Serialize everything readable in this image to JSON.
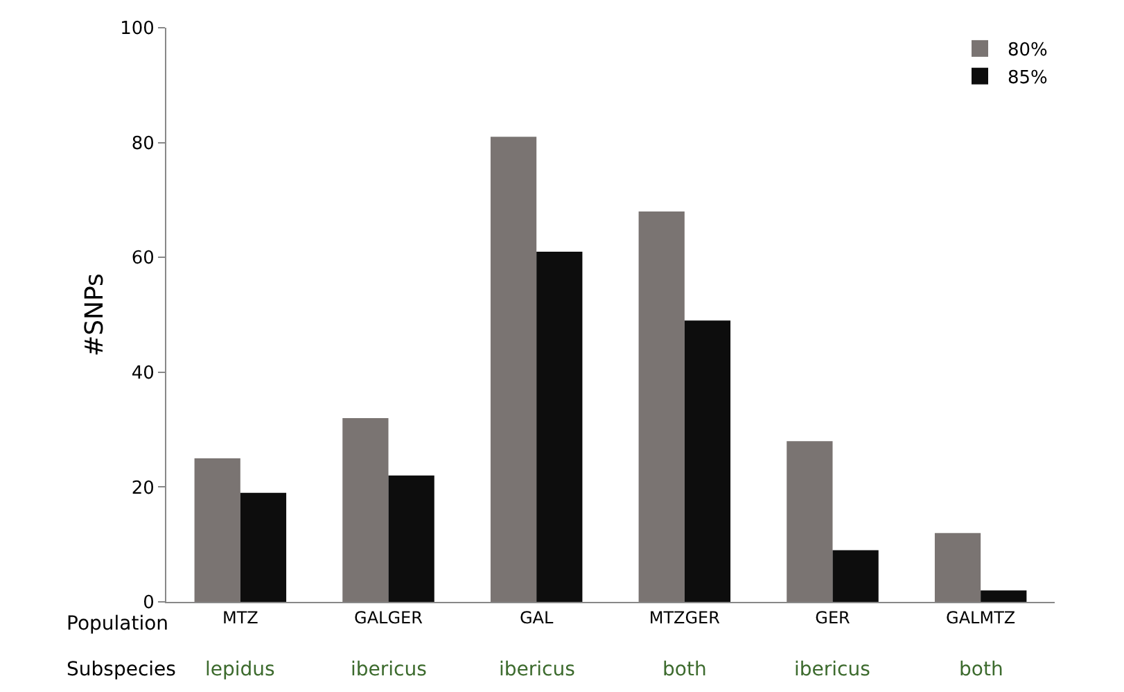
{
  "chart_data": {
    "type": "bar",
    "ylabel": "#SNPs",
    "categories": [
      "MTZ",
      "GALGER",
      "GAL",
      "MTZGER",
      "GER",
      "GALMTZ"
    ],
    "series": [
      {
        "name": "80%",
        "color": "#7a7472",
        "values": [
          25,
          32,
          81,
          68,
          28,
          12
        ]
      },
      {
        "name": "85%",
        "color": "#0d0d0d",
        "values": [
          19,
          22,
          61,
          49,
          9,
          2
        ]
      }
    ],
    "ylim": [
      0,
      100
    ],
    "yticks": [
      0,
      20,
      40,
      60,
      80,
      100
    ],
    "grid": false,
    "legend": "top right",
    "annotations": [
      "Population",
      "Subspecies",
      "lepidus",
      "ibericus",
      "ibericus",
      "both",
      "ibericus",
      "both"
    ]
  }
}
